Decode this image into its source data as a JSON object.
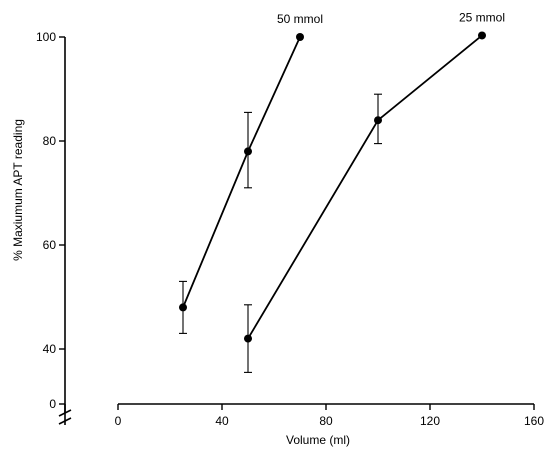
{
  "chart_data": {
    "type": "line",
    "title": "",
    "xlabel": "Volume (ml)",
    "ylabel": "% Maxiumum APT reading",
    "xlim": [
      0,
      160
    ],
    "ylim": [
      30,
      100
    ],
    "x_ticks": [
      0,
      40,
      80,
      120,
      160
    ],
    "y_ticks": [
      40,
      60,
      80,
      100
    ],
    "y_zero_label": "0",
    "y_axis_break": true,
    "grid": false,
    "series": [
      {
        "name": "50 mmol",
        "points": [
          {
            "x": 25,
            "y": 48,
            "err_low": 43,
            "err_high": 53
          },
          {
            "x": 50,
            "y": 78,
            "err_low": 71,
            "err_high": 85.5
          },
          {
            "x": 70,
            "y": 100
          }
        ]
      },
      {
        "name": "25 mmol",
        "points": [
          {
            "x": 50,
            "y": 42,
            "err_low": 35.5,
            "err_high": 48.5
          },
          {
            "x": 100,
            "y": 84,
            "err_low": 79.5,
            "err_high": 89
          },
          {
            "x": 140,
            "y": 100.3
          }
        ]
      }
    ]
  }
}
